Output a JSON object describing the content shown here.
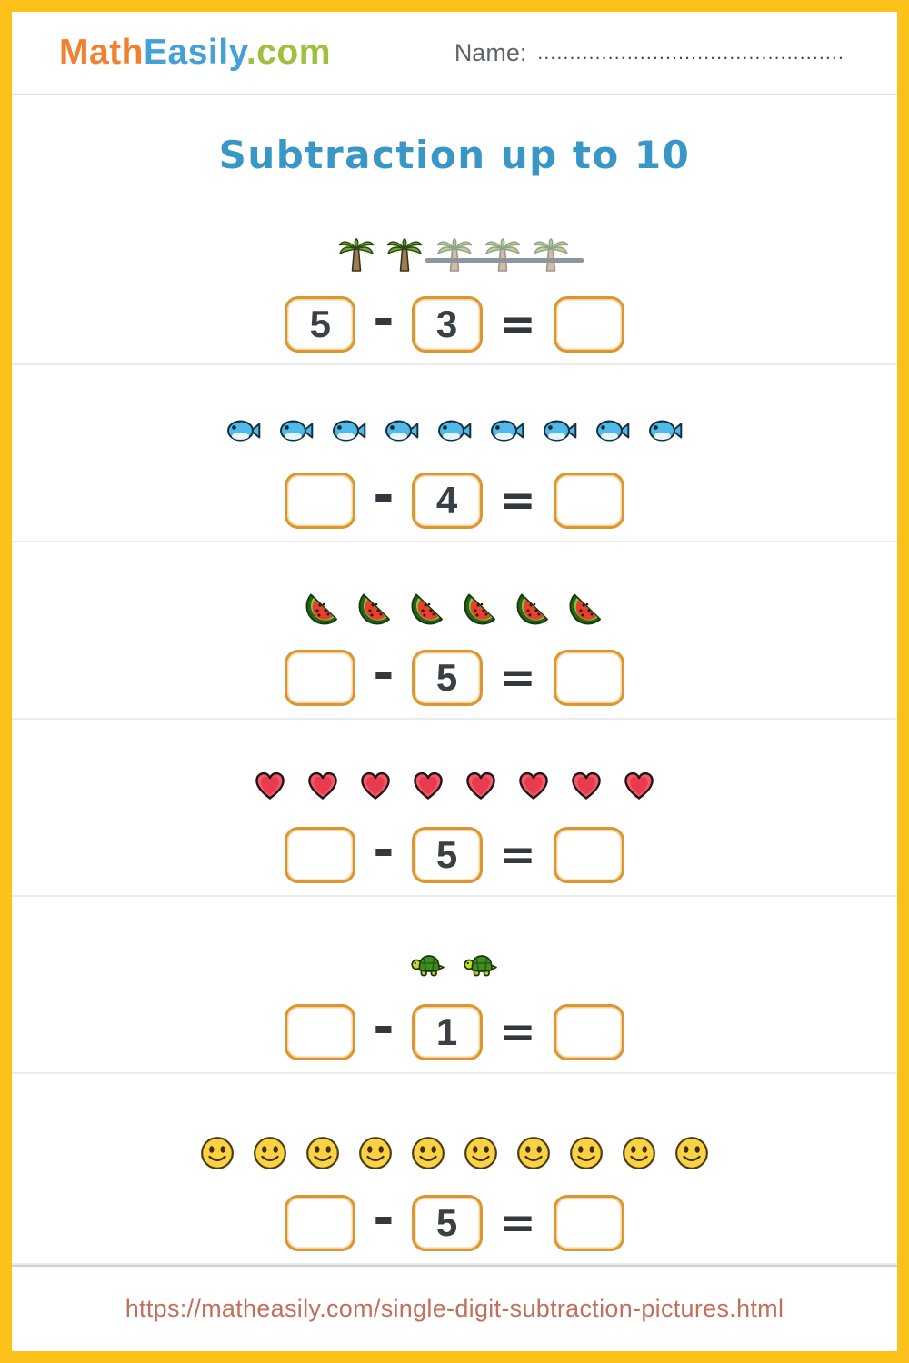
{
  "header": {
    "logo": {
      "math": "Math",
      "easily": "Easily",
      "com": ".com"
    },
    "name_label": "Name:",
    "name_dots": "................................................"
  },
  "title": "Subtraction up to 10",
  "operators": {
    "minus": "-",
    "equals": "="
  },
  "problems": [
    {
      "icon": "palm-tree",
      "count": 5,
      "crossed": 3,
      "minuend": "5",
      "subtrahend": "3",
      "answer": ""
    },
    {
      "icon": "fish",
      "count": 9,
      "crossed": 0,
      "minuend": "",
      "subtrahend": "4",
      "answer": ""
    },
    {
      "icon": "watermelon",
      "count": 6,
      "crossed": 0,
      "minuend": "",
      "subtrahend": "5",
      "answer": ""
    },
    {
      "icon": "heart",
      "count": 8,
      "crossed": 0,
      "minuend": "",
      "subtrahend": "5",
      "answer": ""
    },
    {
      "icon": "turtle",
      "count": 2,
      "crossed": 0,
      "minuend": "",
      "subtrahend": "1",
      "answer": ""
    },
    {
      "icon": "smiley",
      "count": 10,
      "crossed": 0,
      "minuend": "",
      "subtrahend": "5",
      "answer": ""
    }
  ],
  "colors": {
    "frame": "#fdc11c",
    "box_border": "#dd9530",
    "title": "#3897c6",
    "logo_math": "#f08133",
    "logo_easily": "#44a0d8",
    "logo_com": "#9cc23c",
    "footer_url": "#c0705b"
  },
  "footer": {
    "url": "https://matheasily.com/single-digit-subtraction-pictures.html"
  }
}
